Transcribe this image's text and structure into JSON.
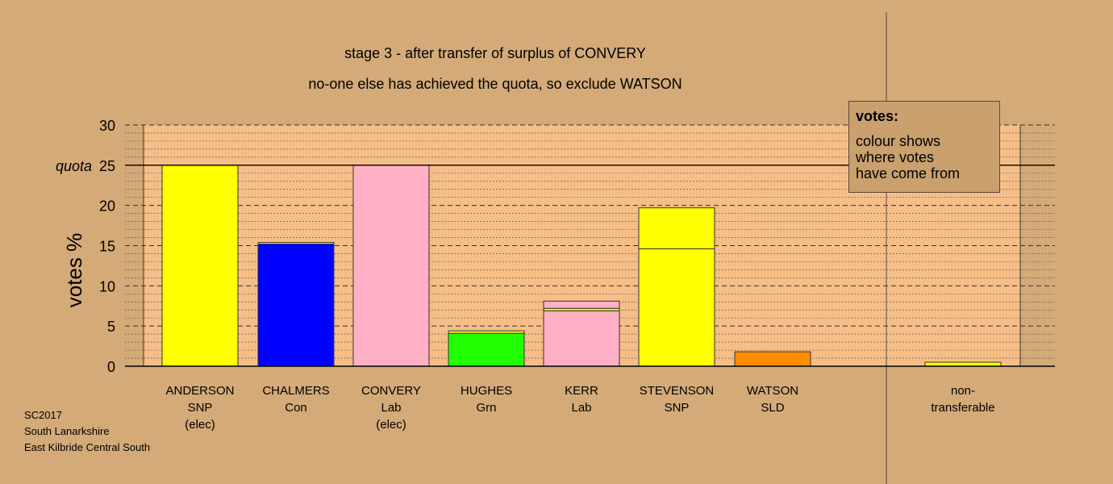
{
  "chart_data": {
    "type": "bar",
    "stacked": true,
    "title": "stage 3 - after transfer of surplus of CONVERY",
    "subtitle": "no-one else has achieved the quota, so exclude WATSON",
    "ylabel": "votes %",
    "ylim": [
      0,
      30
    ],
    "yticks": [
      "0",
      "5",
      "10",
      "15",
      "20",
      "25",
      "30"
    ],
    "quota_value": 25,
    "quota_label": "quota",
    "grid": true,
    "categories": [
      {
        "name": "ANDERSON",
        "party": "SNP",
        "note": "(elec)"
      },
      {
        "name": "CHALMERS",
        "party": "Con",
        "note": ""
      },
      {
        "name": "CONVERY",
        "party": "Lab",
        "note": "(elec)"
      },
      {
        "name": "HUGHES",
        "party": "Grn",
        "note": ""
      },
      {
        "name": "KERR",
        "party": "Lab",
        "note": ""
      },
      {
        "name": "STEVENSON",
        "party": "SNP",
        "note": ""
      },
      {
        "name": "WATSON",
        "party": "SLD",
        "note": ""
      },
      {
        "name": "non-",
        "party": "transferable",
        "note": ""
      }
    ],
    "bars": [
      {
        "segments": [
          {
            "value": 25.0,
            "color": "#ffff00"
          }
        ]
      },
      {
        "segments": [
          {
            "value": 15.2,
            "color": "#0000ff"
          },
          {
            "value": 0.2,
            "color": "#ffff00"
          }
        ]
      },
      {
        "segments": [
          {
            "value": 25.0,
            "color": "#ffb0c4"
          }
        ]
      },
      {
        "segments": [
          {
            "value": 4.1,
            "color": "#22ff00"
          },
          {
            "value": 0.3,
            "color": "#ffff00"
          }
        ]
      },
      {
        "segments": [
          {
            "value": 6.9,
            "color": "#ffb0c4"
          },
          {
            "value": 0.3,
            "color": "#ffff00"
          },
          {
            "value": 0.9,
            "color": "#ffb0c4"
          }
        ]
      },
      {
        "segments": [
          {
            "value": 14.6,
            "color": "#ffff00"
          },
          {
            "value": 5.1,
            "color": "#ffff00"
          }
        ]
      },
      {
        "segments": [
          {
            "value": 1.8,
            "color": "#ff8c00"
          }
        ]
      },
      {
        "segments": [
          {
            "value": 0.5,
            "color": "#ffff00"
          }
        ]
      }
    ]
  },
  "legend": {
    "title": "votes:",
    "lines": [
      "colour shows",
      "where votes",
      "have come from"
    ]
  },
  "source": [
    "SC2017",
    "South Lanarkshire",
    "East Kilbride Central South"
  ],
  "colors": {
    "background": "#d4aa78",
    "plot_area": "#f5be88"
  }
}
